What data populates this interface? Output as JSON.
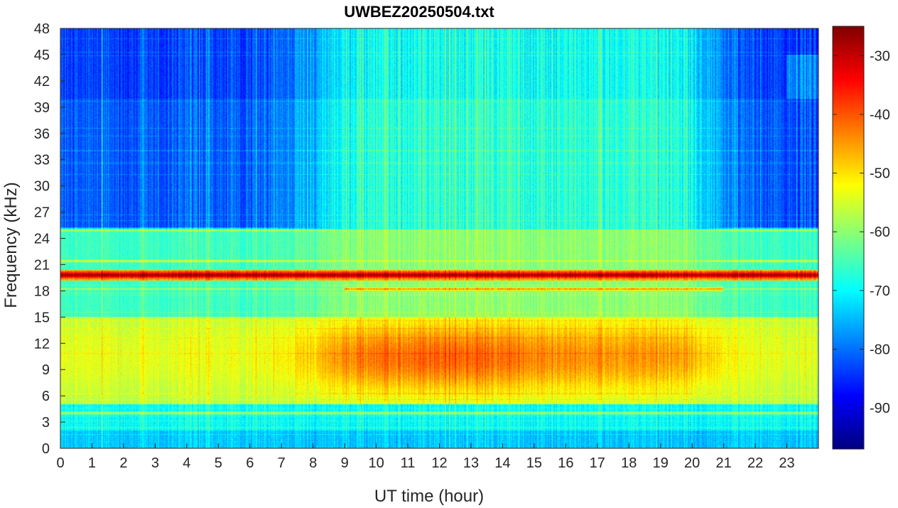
{
  "chart_data": {
    "type": "heatmap",
    "title": "UWBEZ20250504.txt",
    "xlabel": "UT time (hour)",
    "ylabel": "Frequency (kHz)",
    "xlim": [
      0,
      24
    ],
    "ylim": [
      0,
      48
    ],
    "x_ticks": [
      "0",
      "1",
      "2",
      "3",
      "4",
      "5",
      "6",
      "7",
      "8",
      "9",
      "10",
      "11",
      "12",
      "13",
      "14",
      "15",
      "16",
      "17",
      "18",
      "19",
      "20",
      "21",
      "22",
      "23"
    ],
    "y_ticks": [
      "0",
      "3",
      "6",
      "9",
      "12",
      "15",
      "18",
      "21",
      "24",
      "27",
      "30",
      "33",
      "36",
      "39",
      "42",
      "45",
      "48"
    ],
    "colorbar": {
      "colormap": "jet",
      "range": [
        -97,
        -25
      ],
      "ticks": [
        "-30",
        "-40",
        "-50",
        "-60",
        "-70",
        "-80",
        "-90"
      ]
    },
    "features": [
      {
        "freq_khz": 19.8,
        "level_db": -28
      },
      {
        "freq_khz": 18.2,
        "level_db": -45
      },
      {
        "freq_khz": 21.4,
        "level_db": -55
      },
      {
        "freq_khz": 24.9,
        "level_db": -58
      },
      {
        "freq_khz": 4.0,
        "level_db": -58
      },
      {
        "freq_khz_range": [
          6,
          15
        ],
        "peak_time_hour": 12,
        "level_db": -45
      }
    ]
  }
}
